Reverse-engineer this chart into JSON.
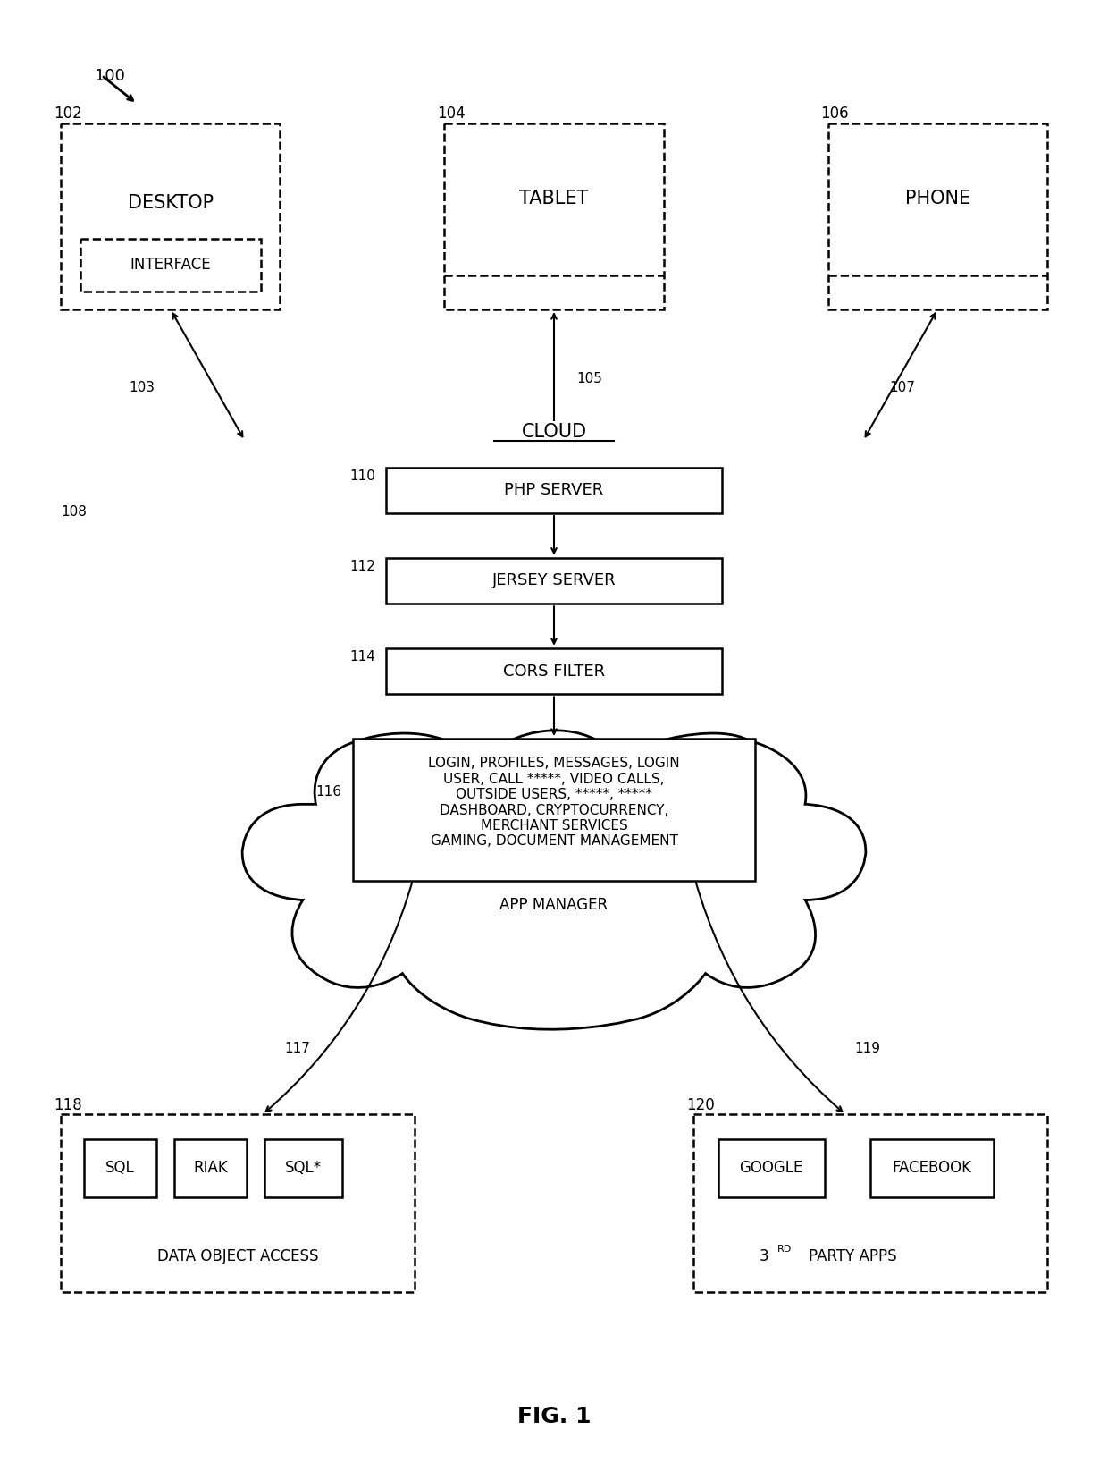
{
  "bg_color": "#ffffff",
  "fig_caption": "FIG. 1",
  "label_100": "100",
  "label_102": "102",
  "label_103": "103",
  "label_104": "104",
  "label_105": "105",
  "label_106": "106",
  "label_107": "107",
  "label_108": "108",
  "label_110": "110",
  "label_112": "112",
  "label_114": "114",
  "label_116": "116",
  "label_117": "117",
  "label_118": "118",
  "label_119": "119",
  "label_120": "120",
  "desktop_text": "DESKTOP",
  "interface_text": "INTERFACE",
  "tablet_text": "TABLET",
  "phone_text": "PHONE",
  "cloud_text": "CLOUD",
  "php_text": "PHP SERVER",
  "jersey_text": "JERSEY SERVER",
  "cors_text": "CORS FILTER",
  "app_text": "LOGIN, PROFILES, MESSAGES, LOGIN\nUSER, CALL *****, VIDEO CALLS,\nOUTSIDE USERS, *****, *****\nDASHBOARD, CRYPTOCURRENCY,\nMERCHANT SERVICES\nGAMING, DOCUMENT MANAGEMENT",
  "app_manager_text": "APP MANAGER",
  "data_text": "DATA OBJECT ACCESS",
  "party_text": "3RD PARTY APPS",
  "sql_text": "SQL",
  "riak_text": "RIAK",
  "sqlstar_text": "SQL*",
  "google_text": "GOOGLE",
  "facebook_text": "FACEBOOK"
}
